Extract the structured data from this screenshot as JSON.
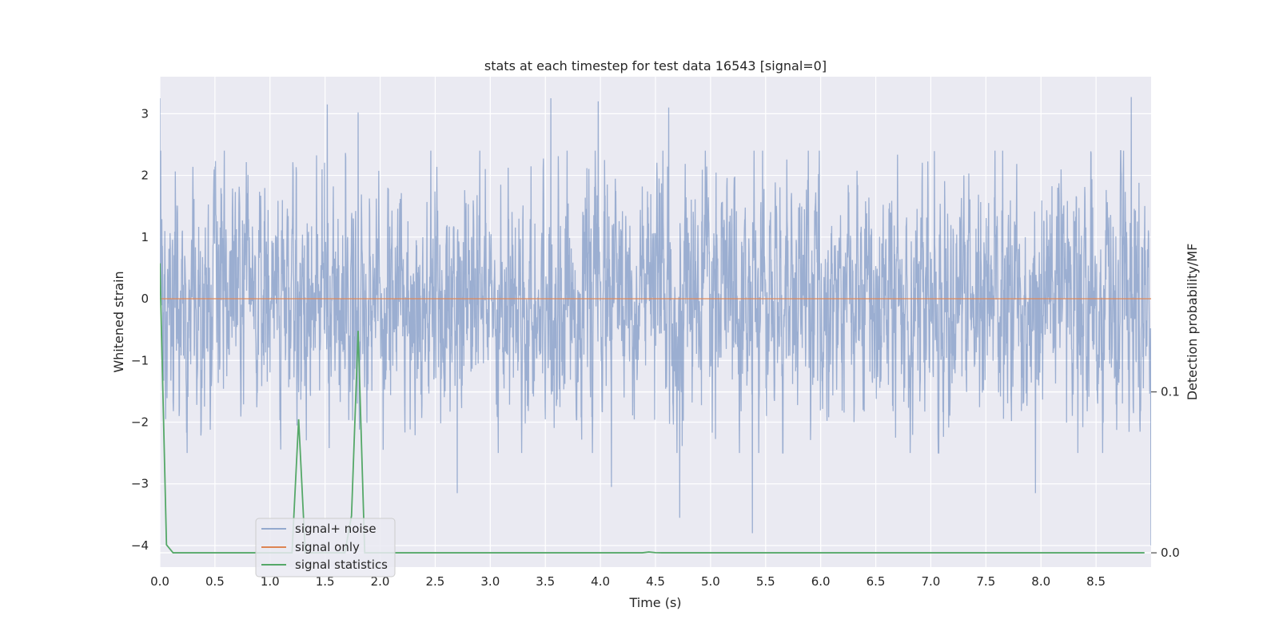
{
  "chart_data": {
    "type": "line",
    "title": "stats at each timestep for test data 16543 [signal=0]",
    "xlabel": "Time (s)",
    "ylabel": "Whitened strain",
    "y2label": "Detection probability/MF",
    "xlim": [
      0,
      9.0
    ],
    "ylim": [
      -4.35,
      3.6
    ],
    "y2lim": [
      -0.0089,
      0.296
    ],
    "xticks": [
      0.0,
      0.5,
      1.0,
      1.5,
      2.0,
      2.5,
      3.0,
      3.5,
      4.0,
      4.5,
      5.0,
      5.5,
      6.0,
      6.5,
      7.0,
      7.5,
      8.0,
      8.5
    ],
    "xtick_labels": [
      "0.0",
      "0.5",
      "1.0",
      "1.5",
      "2.0",
      "2.5",
      "3.0",
      "3.5",
      "4.0",
      "4.5",
      "5.0",
      "5.5",
      "6.0",
      "6.5",
      "7.0",
      "7.5",
      "8.0",
      "8.5"
    ],
    "yticks": [
      3,
      2,
      1,
      0,
      -1,
      -2,
      -3,
      -4
    ],
    "ytick_labels": [
      "3",
      "2",
      "1",
      "0",
      "−1",
      "−2",
      "−3",
      "−4"
    ],
    "y2ticks": [
      0.1,
      0.0
    ],
    "y2tick_labels": [
      "0.1",
      "0.0"
    ],
    "grid": true,
    "legend_position": "lower-left",
    "series": [
      {
        "name": "signal+ noise",
        "axis": "left",
        "color": "#4c72b0",
        "style": "dense noise trace, amplitude roughly within [-2.5, 2.5] with excursions to about ±3.3",
        "notable_peaks": [
          {
            "x": 0.0,
            "y": 3.25
          },
          {
            "x": 1.52,
            "y": 3.15
          },
          {
            "x": 1.8,
            "y": 3.02
          },
          {
            "x": 3.55,
            "y": 3.25
          },
          {
            "x": 3.98,
            "y": 3.2
          },
          {
            "x": 4.62,
            "y": 3.1
          },
          {
            "x": 8.82,
            "y": 3.27
          }
        ],
        "notable_troughs": [
          {
            "x": 2.7,
            "y": -3.15
          },
          {
            "x": 4.1,
            "y": -3.05
          },
          {
            "x": 4.72,
            "y": -3.55
          },
          {
            "x": 5.38,
            "y": -3.8
          },
          {
            "x": 7.95,
            "y": -3.15
          },
          {
            "x": 9.0,
            "y": -4.0
          }
        ]
      },
      {
        "name": "signal only",
        "axis": "left",
        "color": "#dd8452",
        "x": [
          0.0,
          9.0
        ],
        "y": [
          0.0,
          0.0
        ]
      },
      {
        "name": "signal statistics",
        "axis": "right",
        "color": "#55a868",
        "x": [
          0.0,
          0.06,
          0.12,
          0.18,
          0.24,
          0.3,
          0.36,
          0.42,
          0.48,
          0.54,
          0.6,
          0.66,
          0.72,
          0.78,
          0.84,
          0.9,
          0.96,
          1.02,
          1.08,
          1.14,
          1.2,
          1.26,
          1.32,
          1.38,
          1.44,
          1.5,
          1.56,
          1.62,
          1.68,
          1.74,
          1.8,
          1.86,
          1.92,
          1.98,
          2.04,
          2.1,
          4.38,
          4.44,
          4.5,
          4.56,
          8.94
        ],
        "y": [
          0.18,
          0.005,
          0.0,
          0.0,
          0.0,
          0.0,
          0.0,
          0.0,
          0.0,
          0.0,
          0.0,
          0.0,
          0.0,
          0.0,
          0.0,
          0.0,
          0.0,
          0.0,
          0.0,
          0.0,
          0.0,
          0.083,
          0.0,
          0.0,
          0.0,
          0.0,
          0.0,
          0.0,
          0.0,
          0.023,
          0.138,
          0.0,
          0.0,
          0.0,
          0.0,
          0.0,
          0.0,
          0.0005,
          0.0001,
          0.0,
          0.0
        ]
      }
    ]
  }
}
